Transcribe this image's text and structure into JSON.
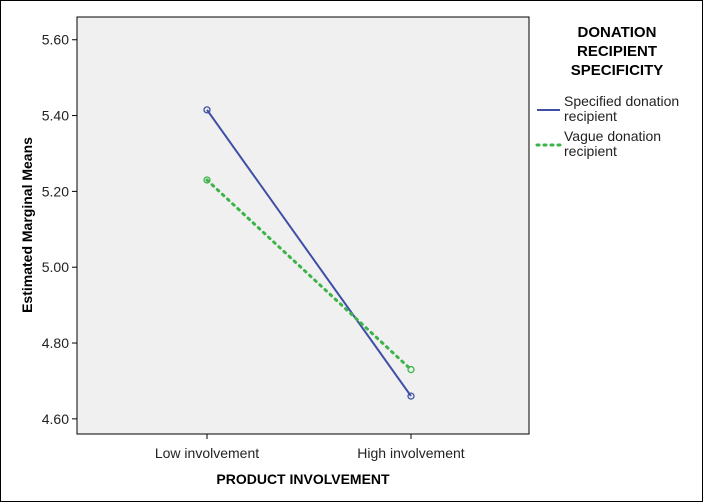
{
  "chart_data": {
    "type": "line",
    "xlabel": "PRODUCT INVOLVEMENT",
    "ylabel": "Estimated Marginal Means",
    "categories": [
      "Low involvement",
      "High involvement"
    ],
    "ylim": [
      4.56,
      5.66
    ],
    "yticks": [
      "4.60",
      "4.80",
      "5.00",
      "5.20",
      "5.40",
      "5.60"
    ],
    "legend_title": [
      "DONATION",
      "RECIPIENT",
      "SPECIFICITY"
    ],
    "legend_position": "right",
    "grid": false,
    "series": [
      {
        "name_lines": [
          "Specified donation",
          "recipient"
        ],
        "values": [
          5.415,
          4.66
        ],
        "color": "#3f4fa6",
        "style": "solid"
      },
      {
        "name_lines": [
          "Vague donation",
          "recipient"
        ],
        "values": [
          5.23,
          4.73
        ],
        "color": "#3cb44a",
        "style": "dotted"
      }
    ],
    "plot_background": "#f0f0f0"
  }
}
